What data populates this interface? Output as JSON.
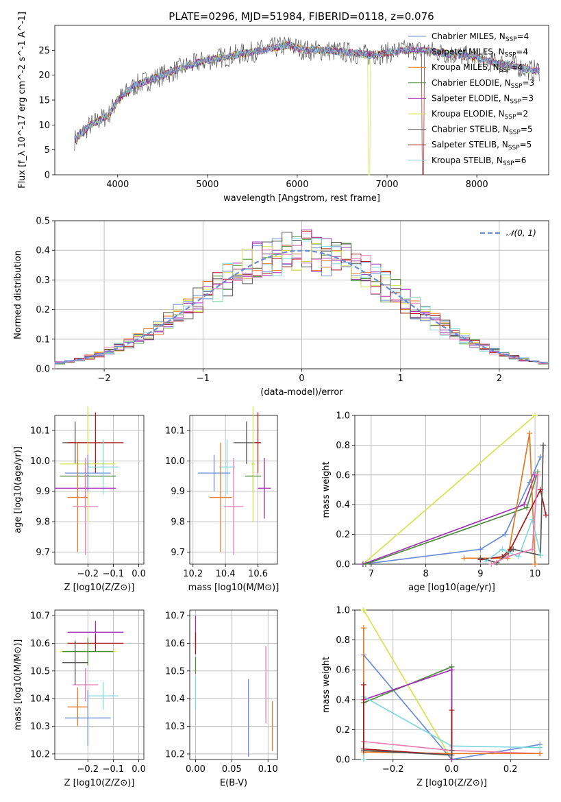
{
  "figure": {
    "title": "PLATE=0296, MJD=51984, FIBERID=0118, z=0.076"
  },
  "colors": {
    "Chabrier MILES": "#6a8bd6",
    "Salpeter MILES": "#8d3aa8",
    "Kroupa MILES": "#e87722",
    "Chabrier ELODIE": "#4c8c3c",
    "Salpeter ELODIE": "#a12fb4",
    "Kroupa ELODIE": "#d3e44c",
    "Chabrier STELIB": "#555555",
    "Salpeter STELIB": "#a31818",
    "Kroupa STELIB": "#7fd8de",
    "extra_pink": "#e87fb4",
    "normal": "#6a8bd6"
  },
  "chart_data": [
    {
      "id": "spectrum",
      "type": "line",
      "title": "PLATE=0296, MJD=51984, FIBERID=0118, z=0.076",
      "xlabel": "wavelength [Angstrom, rest frame]",
      "ylabel": "Flux [f_λ 10^-17 erg cm^-2 s^-1 A^-1]",
      "xlim": [
        3300,
        8800
      ],
      "ylim": [
        0,
        30
      ],
      "xticks": [
        "4000",
        "5000",
        "6000",
        "7000",
        "8000"
      ],
      "yticks": [
        "0",
        "5",
        "10",
        "15",
        "20",
        "25"
      ],
      "legend_loc": "upper right",
      "series": [
        {
          "name": "Chabrier MILES, N_SSP=4"
        },
        {
          "name": "Salpeter MILES, N_SSP=4"
        },
        {
          "name": "Kroupa MILES, N_SSP=4"
        },
        {
          "name": "Chabrier ELODIE, N_SSP=3"
        },
        {
          "name": "Salpeter ELODIE, N_SSP=3"
        },
        {
          "name": "Kroupa ELODIE, N_SSP=2"
        },
        {
          "name": "Chabrier STELIB, N_SSP=5"
        },
        {
          "name": "Salpeter STELIB, N_SSP=5"
        },
        {
          "name": "Kroupa STELIB, N_SSP=6"
        }
      ],
      "continuum": {
        "x": [
          3520,
          3700,
          3900,
          4000,
          4200,
          4500,
          4800,
          5000,
          5300,
          5600,
          5900,
          6100,
          6300,
          6600,
          6800,
          7000,
          7200,
          7400,
          7600,
          7800,
          8000,
          8200,
          8400,
          8600
        ],
        "y": [
          7,
          10,
          12,
          15,
          18,
          20,
          22,
          23,
          24,
          25,
          26,
          25,
          25,
          24.5,
          24,
          24.5,
          25,
          25,
          24.5,
          24,
          23.5,
          22.5,
          22,
          21
        ]
      }
    },
    {
      "id": "residuals",
      "type": "histogram",
      "xlabel": "(data-model)/error",
      "ylabel": "Normed distribution",
      "xlim": [
        -2.5,
        2.5
      ],
      "ylim": [
        0,
        0.5
      ],
      "xticks": [
        "−2",
        "−1",
        "0",
        "1",
        "2"
      ],
      "yticks": [
        "0.0",
        "0.1",
        "0.2",
        "0.3",
        "0.4",
        "0.5"
      ],
      "legend": "𝒩(0, 1)",
      "bin_width": 0.1,
      "bin_edges_start": -2.5
    },
    {
      "id": "age_vs_Z",
      "type": "scatter",
      "xlabel": "Z [log10(Z/Z⊙)]",
      "ylabel": "age [log10(age/yr)]",
      "xlim": [
        -0.33,
        0.02
      ],
      "ylim": [
        9.66,
        10.15
      ],
      "xticks": [
        "−0.2",
        "−0.1",
        "0.0"
      ],
      "yticks": [
        "9.7",
        "9.8",
        "9.9",
        "10.0",
        "10.1"
      ],
      "points": [
        {
          "s": "Chabrier STELIB",
          "x": -0.25,
          "y": 10.06,
          "xe": 0.05,
          "ye": 0.07
        },
        {
          "s": "Salpeter STELIB",
          "x": -0.17,
          "y": 10.06,
          "xe": 0.11,
          "ye": 0.1
        },
        {
          "s": "Chabrier ELODIE",
          "x": -0.2,
          "y": 9.95,
          "xe": 0.11,
          "ye": 0.05
        },
        {
          "s": "Kroupa ELODIE",
          "x": -0.2,
          "y": 9.99,
          "xe": 0.11,
          "ye": 0.19
        },
        {
          "s": "Chabrier MILES",
          "x": -0.2,
          "y": 9.96,
          "xe": 0.09,
          "ye": 0.06
        },
        {
          "s": "Kroupa STELIB",
          "x": -0.14,
          "y": 9.98,
          "xe": 0.06,
          "ye": 0.09
        },
        {
          "s": "Salpeter ELODIE",
          "x": -0.21,
          "y": 9.91,
          "xe": 0.12,
          "ye": 0.07
        },
        {
          "s": "Kroupa MILES",
          "x": -0.24,
          "y": 9.88,
          "xe": 0.04,
          "ye": 0.18
        },
        {
          "s": "extra_pink",
          "x": -0.21,
          "y": 9.85,
          "xe": 0.05,
          "ye": 0.16
        }
      ]
    },
    {
      "id": "age_vs_mass",
      "type": "scatter",
      "xlabel": "mass [log10(M/M⊙)]",
      "ylabel": "",
      "xlim": [
        10.18,
        10.72
      ],
      "ylim": [
        9.66,
        10.15
      ],
      "xticks": [
        "10.2",
        "10.4",
        "10.6"
      ],
      "yticks": [
        "9.7",
        "9.8",
        "9.9",
        "10.0",
        "10.1"
      ],
      "points": [
        {
          "s": "Chabrier STELIB",
          "x": 10.53,
          "y": 10.06,
          "xe": 0.08,
          "ye": 0.07
        },
        {
          "s": "Salpeter STELIB",
          "x": 10.6,
          "y": 10.06,
          "xe": 0.02,
          "ye": 0.1
        },
        {
          "s": "Kroupa STELIB",
          "x": 10.41,
          "y": 9.98,
          "xe": 0.05,
          "ye": 0.09
        },
        {
          "s": "Chabrier MILES",
          "x": 10.33,
          "y": 9.96,
          "xe": 0.1,
          "ye": 0.06
        },
        {
          "s": "Chabrier ELODIE",
          "x": 10.57,
          "y": 9.95,
          "xe": 0.05,
          "ye": 0.05
        },
        {
          "s": "Kroupa ELODIE",
          "x": 10.57,
          "y": 9.99,
          "xe": 0.01,
          "ye": 0.19
        },
        {
          "s": "Salpeter ELODIE",
          "x": 10.64,
          "y": 9.91,
          "xe": 0.04,
          "ye": 0.1
        },
        {
          "s": "Kroupa MILES",
          "x": 10.37,
          "y": 9.88,
          "xe": 0.07,
          "ye": 0.18
        },
        {
          "s": "extra_pink",
          "x": 10.45,
          "y": 9.85,
          "xe": 0.06,
          "ye": 0.16
        }
      ]
    },
    {
      "id": "weight_vs_age",
      "type": "line",
      "xlabel": "age [log10(age/yr)]",
      "ylabel": "mass weight",
      "xlim": [
        6.7,
        10.25
      ],
      "ylim": [
        0,
        1.0
      ],
      "xticks": [
        "7",
        "8",
        "9",
        "10"
      ],
      "yticks": [
        "0.0",
        "0.2",
        "0.4",
        "0.6",
        "0.8",
        "1.0"
      ],
      "series": [
        {
          "s": "Kroupa ELODIE",
          "x": [
            6.85,
            10.0
          ],
          "y": [
            0.0,
            1.0
          ]
        },
        {
          "s": "Chabrier MILES",
          "x": [
            6.85,
            9.0,
            9.45,
            9.9,
            10.1
          ],
          "y": [
            0.0,
            0.1,
            0.2,
            0.55,
            0.72
          ]
        },
        {
          "s": "Salpeter ELODIE",
          "x": [
            6.85,
            9.8,
            10.0
          ],
          "y": [
            0.0,
            0.4,
            0.6
          ]
        },
        {
          "s": "Chabrier ELODIE",
          "x": [
            6.9,
            9.85,
            10.05
          ],
          "y": [
            0.0,
            0.38,
            0.62
          ]
        },
        {
          "s": "Kroupa MILES",
          "x": [
            8.7,
            9.5,
            9.9,
            10.0
          ],
          "y": [
            0.04,
            0.04,
            0.88,
            0.0
          ]
        },
        {
          "s": "Salpeter STELIB",
          "x": [
            9.0,
            9.4,
            9.55,
            10.1,
            10.2
          ],
          "y": [
            0.03,
            0.05,
            0.1,
            0.5,
            0.33
          ]
        },
        {
          "s": "Chabrier STELIB",
          "x": [
            9.0,
            9.3,
            9.6,
            10.1,
            10.15
          ],
          "y": [
            0.04,
            0.01,
            0.1,
            0.06,
            0.8
          ]
        },
        {
          "s": "Kroupa STELIB",
          "x": [
            9.1,
            9.4,
            9.7,
            9.95,
            10.1
          ],
          "y": [
            0.02,
            0.1,
            0.05,
            0.3,
            0.06
          ]
        },
        {
          "s": "extra_pink",
          "x": [
            9.2,
            9.5,
            9.95,
            10.05
          ],
          "y": [
            0.0,
            0.05,
            0.1,
            0.6
          ]
        }
      ]
    },
    {
      "id": "mass_vs_Z",
      "type": "scatter",
      "xlabel": "Z [log10(Z/Z⊙)]",
      "ylabel": "mass [log10(M/M⊙)]",
      "xlim": [
        -0.33,
        0.02
      ],
      "ylim": [
        10.18,
        10.72
      ],
      "xticks": [
        "−0.2",
        "−0.1",
        "0.0"
      ],
      "yticks": [
        "10.2",
        "10.3",
        "10.4",
        "10.5",
        "10.6",
        "10.7"
      ],
      "points": [
        {
          "s": "Salpeter ELODIE",
          "x": -0.17,
          "y": 10.64,
          "xe": 0.11,
          "ye": 0.04
        },
        {
          "s": "Salpeter STELIB",
          "x": -0.17,
          "y": 10.6,
          "xe": 0.11,
          "ye": 0.03
        },
        {
          "s": "Kroupa ELODIE",
          "x": -0.2,
          "y": 10.57,
          "xe": 0.11,
          "ye": 0.01
        },
        {
          "s": "Chabrier ELODIE",
          "x": -0.2,
          "y": 10.57,
          "xe": 0.1,
          "ye": 0.05
        },
        {
          "s": "Chabrier STELIB",
          "x": -0.25,
          "y": 10.53,
          "xe": 0.05,
          "ye": 0.08
        },
        {
          "s": "extra_pink",
          "x": -0.21,
          "y": 10.45,
          "xe": 0.05,
          "ye": 0.06
        },
        {
          "s": "Kroupa STELIB",
          "x": -0.14,
          "y": 10.41,
          "xe": 0.06,
          "ye": 0.05
        },
        {
          "s": "Kroupa MILES",
          "x": -0.24,
          "y": 10.37,
          "xe": 0.04,
          "ye": 0.07
        },
        {
          "s": "Chabrier MILES",
          "x": -0.2,
          "y": 10.33,
          "xe": 0.09,
          "ye": 0.1
        }
      ]
    },
    {
      "id": "mass_vs_ebv",
      "type": "scatter",
      "xlabel": "E(B-V)",
      "ylabel": "",
      "xlim": [
        -0.008,
        0.113
      ],
      "ylim": [
        10.18,
        10.72
      ],
      "xticks": [
        "0.00",
        "0.05",
        "0.10"
      ],
      "yticks": [
        "10.2",
        "10.3",
        "10.4",
        "10.5",
        "10.6",
        "10.7"
      ],
      "points": [
        {
          "s": "Salpeter ELODIE",
          "x": 0.0,
          "y": 10.64,
          "xe": 0,
          "ye": 0.06
        },
        {
          "s": "Salpeter STELIB",
          "x": 0.0,
          "y": 10.6,
          "xe": 0,
          "ye": 0.04
        },
        {
          "s": "Chabrier ELODIE",
          "x": 0.0,
          "y": 10.52,
          "xe": 0,
          "ye": 0.03
        },
        {
          "s": "Kroupa STELIB",
          "x": 0.0,
          "y": 10.42,
          "xe": 0,
          "ye": 0.06
        },
        {
          "s": "Chabrier MILES",
          "x": 0.073,
          "y": 10.33,
          "xe": 0,
          "ye": 0.14
        },
        {
          "s": "extra_pink",
          "x": 0.097,
          "y": 10.45,
          "xe": 0,
          "ye": 0.14
        },
        {
          "s": "Kroupa MILES",
          "x": 0.106,
          "y": 10.3,
          "xe": 0,
          "ye": 0.09
        }
      ]
    },
    {
      "id": "weight_vs_Z",
      "type": "line",
      "xlabel": "Z [log10(Z/Z⊙)]",
      "ylabel": "mass weight",
      "xlim": [
        -0.33,
        0.33
      ],
      "ylim": [
        0,
        1.0
      ],
      "xticks": [
        "−0.2",
        "0.0",
        "0.2"
      ],
      "yticks": [
        "0.0",
        "0.2",
        "0.4",
        "0.6",
        "0.8",
        "1.0"
      ],
      "series": [
        {
          "s": "Kroupa ELODIE",
          "x": [
            -0.3,
            0.0
          ],
          "y": [
            1.0,
            0.0
          ]
        },
        {
          "s": "Chabrier MILES",
          "x": [
            -0.3,
            0.0,
            0.3
          ],
          "y": [
            0.7,
            0.0,
            0.1
          ]
        },
        {
          "s": "Chabrier ELODIE",
          "x": [
            -0.3,
            0.0,
            0.0
          ],
          "y": [
            0.38,
            0.62,
            0.0
          ]
        },
        {
          "s": "Salpeter ELODIE",
          "x": [
            -0.3,
            0.0,
            0.0
          ],
          "y": [
            0.4,
            0.6,
            0.0
          ]
        },
        {
          "s": "extra_pink",
          "x": [
            -0.3,
            0.0,
            0.3
          ],
          "y": [
            0.12,
            0.06,
            0.04
          ]
        },
        {
          "s": "Kroupa STELIB",
          "x": [
            -0.3,
            -0.3,
            0.0,
            0.3
          ],
          "y": [
            0.0,
            0.42,
            0.09,
            0.08
          ]
        },
        {
          "s": "Kroupa MILES",
          "x": [
            -0.3,
            -0.3,
            0.0,
            0.3
          ],
          "y": [
            0.88,
            0.05,
            0.04,
            0.04
          ]
        },
        {
          "s": "Salpeter STELIB",
          "x": [
            -0.3,
            -0.3,
            0.0,
            0.0
          ],
          "y": [
            0.5,
            0.07,
            0.03,
            0.33
          ]
        },
        {
          "s": "Chabrier STELIB",
          "x": [
            -0.3,
            0.0,
            0.0
          ],
          "y": [
            0.06,
            0.03,
            0.06
          ]
        }
      ]
    }
  ]
}
